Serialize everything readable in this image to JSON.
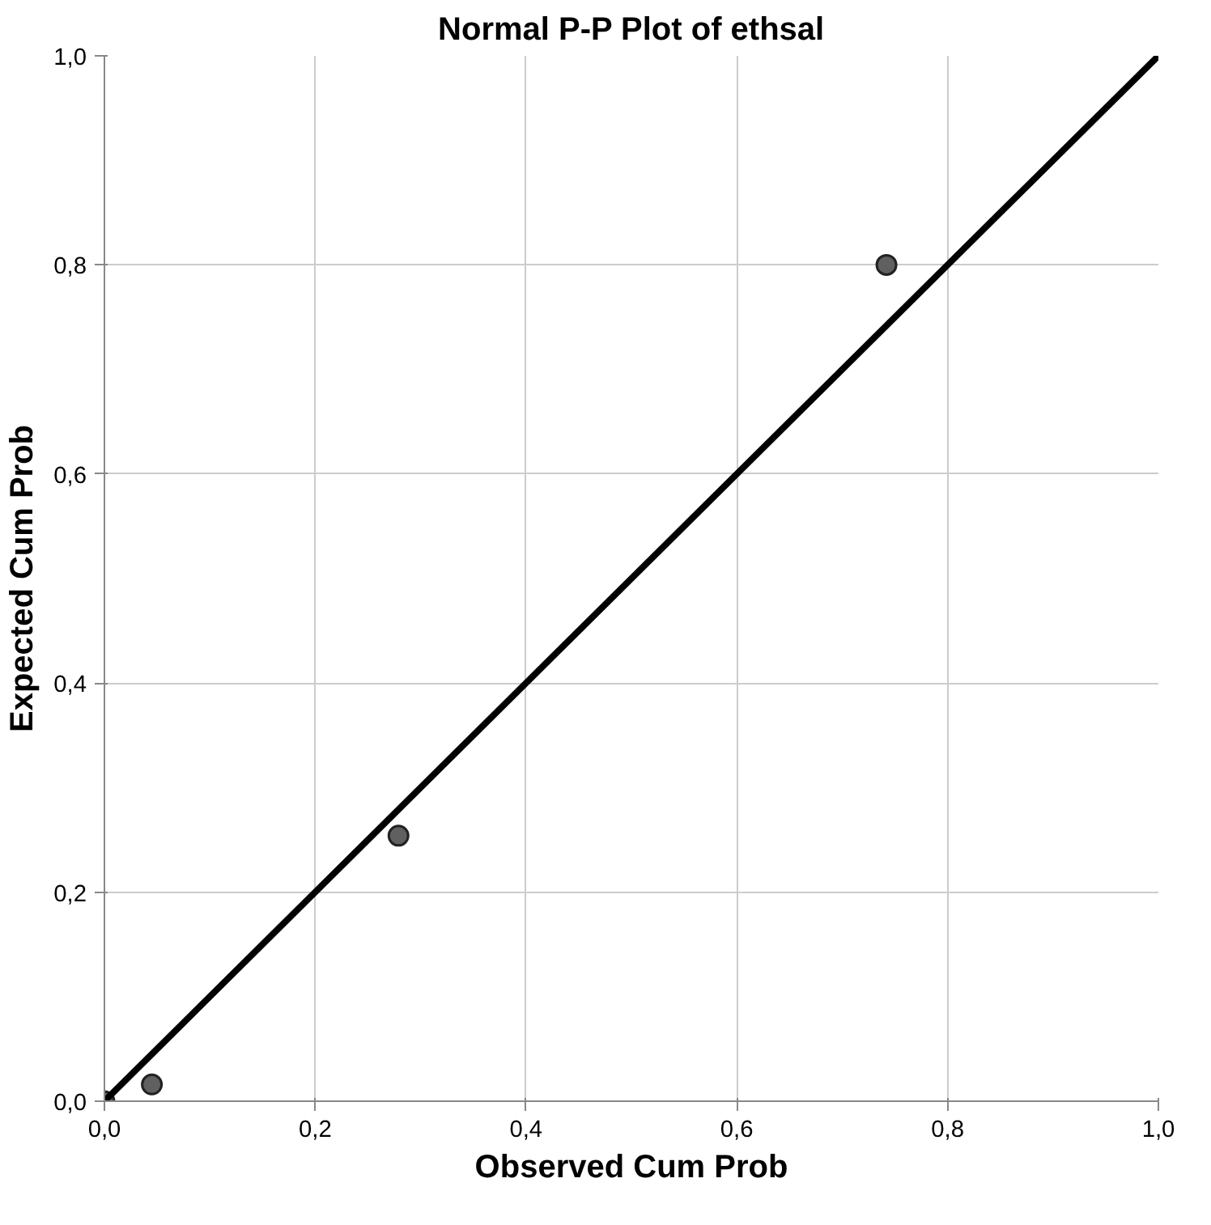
{
  "chart_data": {
    "type": "scatter",
    "title": "Normal P-P Plot of ethsal",
    "xlabel": "Observed Cum Prob",
    "ylabel": "Expected Cum Prob",
    "series": [
      {
        "color": "#606060",
        "marker": "circle",
        "x": [
          0,
          0.045,
          0.279,
          0.742
        ],
        "values": [
          0,
          0.016,
          0.254,
          0.8
        ]
      },
      {
        "type": "line",
        "marker": "none",
        "color": "#000000",
        "x": [
          0,
          1
        ],
        "values": [
          0,
          1
        ]
      }
    ],
    "grid": true,
    "xlim": [
      0,
      1
    ],
    "ylim": [
      0,
      1
    ],
    "xticks": [
      {
        "value": 0,
        "label": "0,0"
      },
      {
        "value": 0.2,
        "label": "0,2"
      },
      {
        "value": 0.4,
        "label": "0,4"
      },
      {
        "value": 0.6,
        "label": "0,6"
      },
      {
        "value": 0.8,
        "label": "0,8"
      },
      {
        "value": 1,
        "label": "1,0"
      }
    ],
    "yticks": [
      {
        "value": 0,
        "label": "0,0"
      },
      {
        "value": 0.2,
        "label": "0,2"
      },
      {
        "value": 0.4,
        "label": "0,4"
      },
      {
        "value": 0.6,
        "label": "0,6"
      },
      {
        "value": 0.8,
        "label": "0,8"
      },
      {
        "value": 1,
        "label": "1,0"
      }
    ]
  }
}
